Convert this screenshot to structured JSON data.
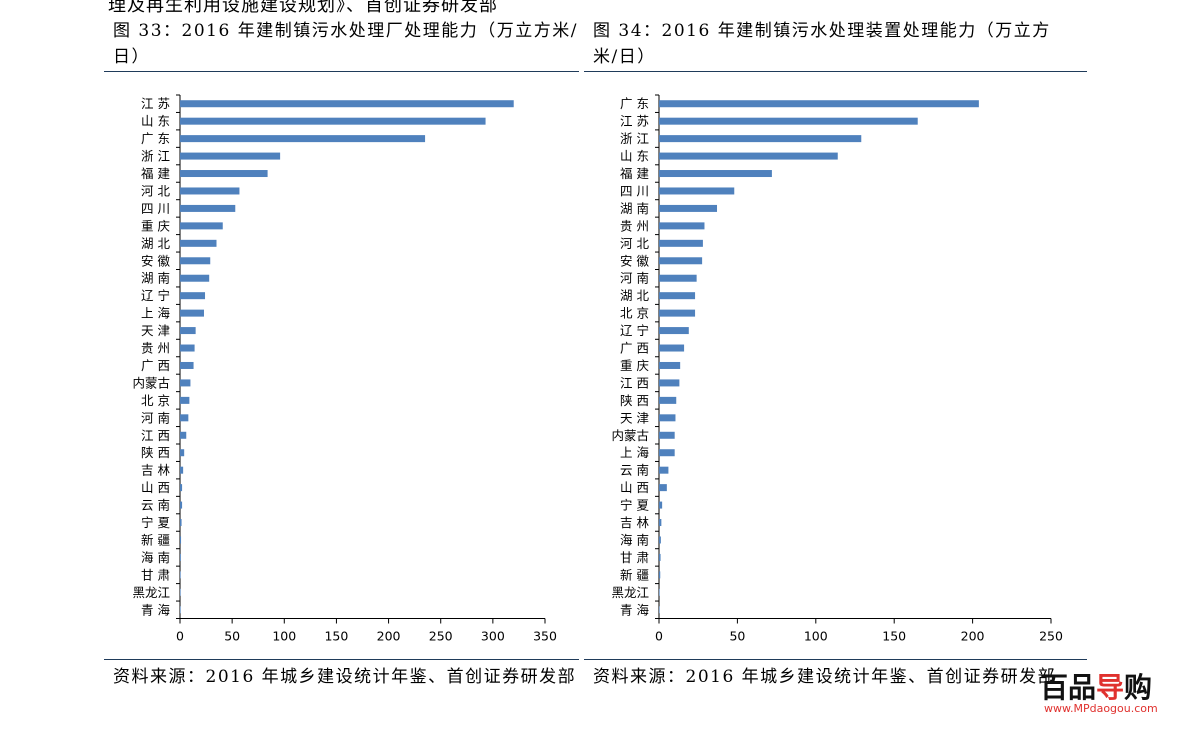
{
  "header": {
    "top_text": "理及再生利用设施建设规划》、首创证券研发部"
  },
  "left": {
    "title": "图 33：2016 年建制镇污水处理厂处理能力（万立方米/日）",
    "source": "资料来源：2016 年城乡建设统计年鉴、首创证券研发部"
  },
  "right": {
    "title": "图 34：2016 年建制镇污水处理装置处理能力（万立方米/日）",
    "source": "资料来源：2016 年城乡建设统计年鉴、首创证券研发部"
  },
  "watermark": {
    "brand_a": "百品",
    "brand_b": "导",
    "brand_c": "购",
    "url": "www.MPdaogou.com"
  },
  "colors": {
    "bar": "#4f81bd",
    "axis": "#000000",
    "rule": "#1f3b5a"
  },
  "chart_data": [
    {
      "type": "bar",
      "orientation": "horizontal",
      "title": "",
      "xlabel": "",
      "ylabel": "",
      "categories": [
        "江 苏",
        "山 东",
        "广 东",
        "浙 江",
        "福 建",
        "河 北",
        "四 川",
        "重 庆",
        "湖 北",
        "安 徽",
        "湖 南",
        "辽 宁",
        "上 海",
        "天 津",
        "贵 州",
        "广 西",
        "内蒙古",
        "北 京",
        "河 南",
        "江 西",
        "陕 西",
        "吉 林",
        "山 西",
        "云 南",
        "宁 夏",
        "新 疆",
        "海 南",
        "甘 肃",
        "黑龙江",
        "青 海"
      ],
      "values": [
        320,
        293,
        235,
        96,
        84,
        57,
        53,
        41,
        35,
        29,
        28,
        24,
        23,
        15,
        14,
        13,
        10,
        9,
        8,
        6,
        4,
        3,
        2,
        2,
        1.5,
        1,
        0.8,
        0.6,
        0.4,
        0.3
      ],
      "xlim": [
        0,
        350
      ],
      "ticks": [
        "0",
        "50",
        "100",
        "150",
        "200",
        "250",
        "300",
        "350"
      ],
      "grid": false
    },
    {
      "type": "bar",
      "orientation": "horizontal",
      "title": "",
      "xlabel": "",
      "ylabel": "",
      "categories": [
        "广 东",
        "江 苏",
        "浙 江",
        "山 东",
        "福 建",
        "四 川",
        "湖 南",
        "贵 州",
        "河 北",
        "安 徽",
        "河 南",
        "湖 北",
        "北 京",
        "辽 宁",
        "广 西",
        "重 庆",
        "江 西",
        "陕 西",
        "天 津",
        "内蒙古",
        "上 海",
        "云 南",
        "山 西",
        "宁 夏",
        "吉 林",
        "海 南",
        "甘 肃",
        "新 疆",
        "黑龙江",
        "青 海"
      ],
      "values": [
        204,
        165,
        129,
        114,
        72,
        48,
        37,
        29,
        28,
        27.5,
        24,
        23,
        23,
        19,
        16,
        13.5,
        13,
        11,
        10.5,
        10,
        10,
        6,
        5,
        2,
        1.5,
        1.2,
        1,
        0.8,
        0.4,
        0.3
      ],
      "xlim": [
        0,
        250
      ],
      "ticks": [
        "0",
        "50",
        "100",
        "150",
        "200",
        "250"
      ],
      "grid": false
    }
  ]
}
